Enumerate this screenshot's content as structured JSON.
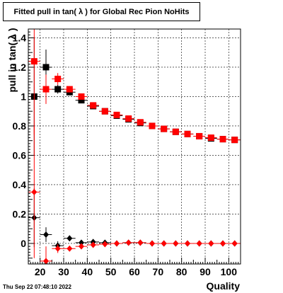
{
  "chart_data": {
    "type": "scatter",
    "title": "Fitted pull in tan( λ ) for Global Rec Pion NoHits",
    "xlabel": "Quality",
    "ylabel": "pull in tan( λ )",
    "xlim": [
      15,
      105
    ],
    "ylim": [
      -0.14,
      1.46
    ],
    "grid": true,
    "x_ticks": [
      20,
      30,
      40,
      50,
      60,
      70,
      80,
      90,
      100
    ],
    "x_tick_labels": [
      "20",
      "30",
      "40",
      "50",
      "60",
      "70",
      "80",
      "90",
      "100"
    ],
    "y_ticks": [
      0,
      0.2,
      0.4,
      0.6,
      0.8,
      1.0,
      1.2,
      1.4
    ],
    "y_tick_labels": [
      "0",
      "0.2",
      "0.4",
      "0.6",
      "0.8",
      "1",
      "1.2",
      "1.4"
    ],
    "series": [
      {
        "marker": "square",
        "color": "#000000",
        "points": [
          {
            "x": 17.5,
            "y": 1.0,
            "err": 0.4
          },
          {
            "x": 22.5,
            "y": 1.2,
            "err": 0.12
          },
          {
            "x": 27.5,
            "y": 1.05,
            "err": 0.03
          },
          {
            "x": 32.5,
            "y": 1.03,
            "err": 0.02
          },
          {
            "x": 37.5,
            "y": 0.975,
            "err": 0.015
          },
          {
            "x": 42.5,
            "y": 0.935,
            "err": 0.01
          },
          {
            "x": 47.5,
            "y": 0.9,
            "err": 0.01
          },
          {
            "x": 52.5,
            "y": 0.87,
            "err": 0.01
          },
          {
            "x": 57.5,
            "y": 0.845,
            "err": 0.01
          },
          {
            "x": 62.5,
            "y": 0.82,
            "err": 0.01
          },
          {
            "x": 67.5,
            "y": 0.8,
            "err": 0.01
          },
          {
            "x": 72.5,
            "y": 0.78,
            "err": 0.01
          },
          {
            "x": 77.5,
            "y": 0.76,
            "err": 0.01
          },
          {
            "x": 82.5,
            "y": 0.745,
            "err": 0.01
          },
          {
            "x": 87.5,
            "y": 0.73,
            "err": 0.01
          },
          {
            "x": 92.5,
            "y": 0.715,
            "err": 0.01
          },
          {
            "x": 97.5,
            "y": 0.71,
            "err": 0.01
          },
          {
            "x": 102.5,
            "y": 0.705,
            "err": 0.01
          }
        ]
      },
      {
        "marker": "square",
        "color": "#ff0000",
        "points": [
          {
            "x": 17.5,
            "y": 1.24,
            "err": 0.5
          },
          {
            "x": 22.5,
            "y": 1.05,
            "err": 0.1
          },
          {
            "x": 27.5,
            "y": 1.12,
            "err": 0.04
          },
          {
            "x": 32.5,
            "y": 1.05,
            "err": 0.02
          },
          {
            "x": 37.5,
            "y": 1.0,
            "err": 0.015
          },
          {
            "x": 42.5,
            "y": 0.94,
            "err": 0.01
          },
          {
            "x": 47.5,
            "y": 0.9,
            "err": 0.01
          },
          {
            "x": 52.5,
            "y": 0.875,
            "err": 0.01
          },
          {
            "x": 57.5,
            "y": 0.85,
            "err": 0.01
          },
          {
            "x": 62.5,
            "y": 0.825,
            "err": 0.01
          },
          {
            "x": 67.5,
            "y": 0.8,
            "err": 0.01
          },
          {
            "x": 72.5,
            "y": 0.78,
            "err": 0.01
          },
          {
            "x": 77.5,
            "y": 0.76,
            "err": 0.01
          },
          {
            "x": 82.5,
            "y": 0.745,
            "err": 0.01
          },
          {
            "x": 87.5,
            "y": 0.73,
            "err": 0.01
          },
          {
            "x": 92.5,
            "y": 0.72,
            "err": 0.01
          },
          {
            "x": 97.5,
            "y": 0.71,
            "err": 0.01
          },
          {
            "x": 102.5,
            "y": 0.705,
            "err": 0.01
          }
        ]
      },
      {
        "marker": "diamond",
        "color": "#000000",
        "points": [
          {
            "x": 17.5,
            "y": 0.175,
            "err": 0.2
          },
          {
            "x": 22.5,
            "y": 0.06,
            "err": 0.05
          },
          {
            "x": 27.5,
            "y": -0.015,
            "err": 0.03
          },
          {
            "x": 32.5,
            "y": 0.035,
            "err": 0.015
          },
          {
            "x": 37.5,
            "y": 0.005,
            "err": 0.01
          },
          {
            "x": 42.5,
            "y": 0.01,
            "err": 0.005
          },
          {
            "x": 47.5,
            "y": 0.005,
            "err": 0.005
          },
          {
            "x": 52.5,
            "y": 0.0,
            "err": 0.005
          },
          {
            "x": 57.5,
            "y": 0.005,
            "err": 0.005
          },
          {
            "x": 62.5,
            "y": 0.005,
            "err": 0.005
          },
          {
            "x": 67.5,
            "y": 0.0,
            "err": 0.005
          },
          {
            "x": 72.5,
            "y": 0.0,
            "err": 0.005
          },
          {
            "x": 77.5,
            "y": 0.0,
            "err": 0.005
          },
          {
            "x": 82.5,
            "y": 0.0,
            "err": 0.005
          },
          {
            "x": 87.5,
            "y": 0.0,
            "err": 0.005
          },
          {
            "x": 92.5,
            "y": 0.0,
            "err": 0.005
          },
          {
            "x": 97.5,
            "y": 0.0,
            "err": 0.005
          },
          {
            "x": 102.5,
            "y": 0.0,
            "err": 0.005
          }
        ]
      },
      {
        "marker": "diamond",
        "color": "#ff0000",
        "points": [
          {
            "x": 17.5,
            "y": 0.35,
            "err": 0.45
          },
          {
            "x": 22.5,
            "y": -0.12,
            "err": 0.1
          },
          {
            "x": 27.5,
            "y": -0.035,
            "err": 0.03
          },
          {
            "x": 32.5,
            "y": -0.035,
            "err": 0.015
          },
          {
            "x": 37.5,
            "y": -0.02,
            "err": 0.01
          },
          {
            "x": 42.5,
            "y": -0.01,
            "err": 0.005
          },
          {
            "x": 47.5,
            "y": -0.005,
            "err": 0.005
          },
          {
            "x": 52.5,
            "y": 0.0,
            "err": 0.005
          },
          {
            "x": 57.5,
            "y": 0.005,
            "err": 0.005
          },
          {
            "x": 62.5,
            "y": 0.005,
            "err": 0.005
          },
          {
            "x": 67.5,
            "y": 0.0,
            "err": 0.005
          },
          {
            "x": 72.5,
            "y": 0.0,
            "err": 0.005
          },
          {
            "x": 77.5,
            "y": 0.0,
            "err": 0.005
          },
          {
            "x": 82.5,
            "y": 0.0,
            "err": 0.005
          },
          {
            "x": 87.5,
            "y": 0.0,
            "err": 0.005
          },
          {
            "x": 92.5,
            "y": 0.0,
            "err": 0.005
          },
          {
            "x": 97.5,
            "y": 0.0,
            "err": 0.005
          },
          {
            "x": 102.5,
            "y": 0.0,
            "err": 0.005
          }
        ]
      }
    ]
  },
  "footer_timestamp": "Thu Sep 22 07:48:10 2022"
}
